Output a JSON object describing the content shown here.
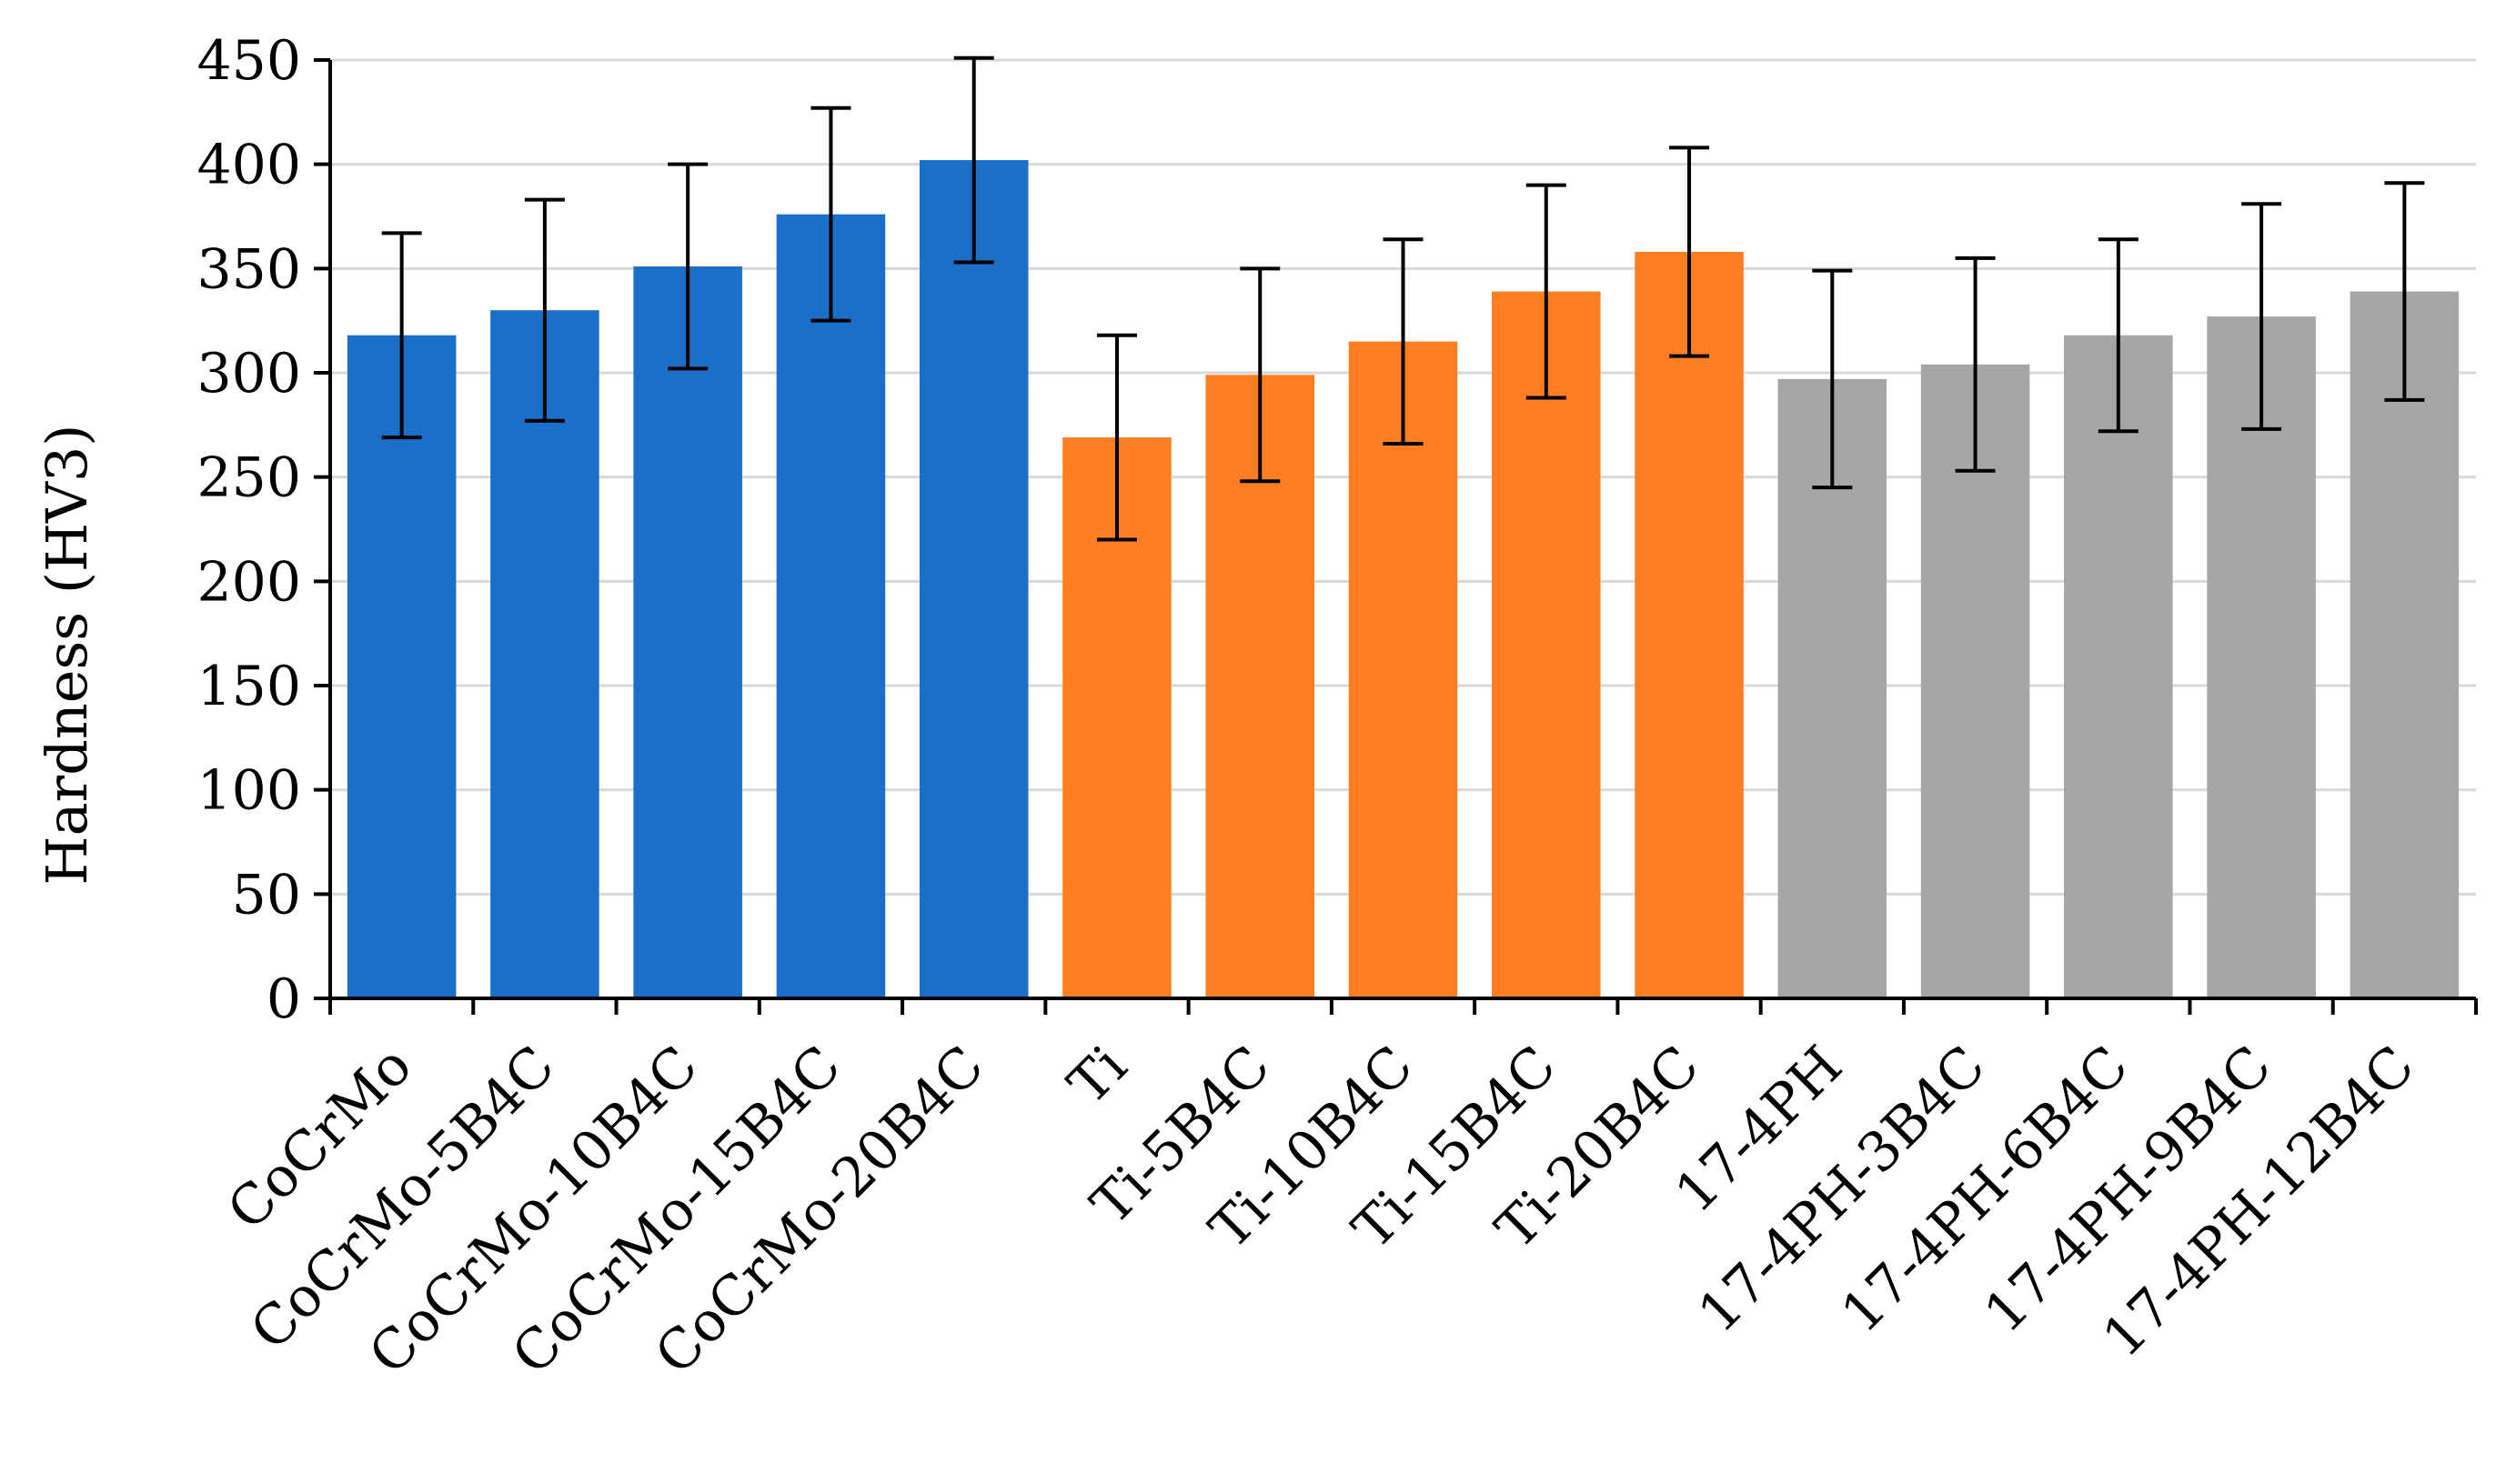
{
  "chart_data": {
    "type": "bar",
    "title": "",
    "xlabel": "",
    "ylabel": "Hardness (HV3)",
    "ylim": [
      0,
      450
    ],
    "ytick_step": 50,
    "yticks": [
      "0",
      "50",
      "100",
      "150",
      "200",
      "250",
      "300",
      "350",
      "400",
      "450"
    ],
    "grid": true,
    "categories": [
      "CoCrMo",
      "CoCrMo-5B4C",
      "CoCrMo-10B4C",
      "CoCrMo-15B4C",
      "CoCrMo-20B4C",
      "Ti",
      "Ti-5B4C",
      "Ti-10B4C",
      "Ti-15B4C",
      "Ti-20B4C",
      "17-4PH",
      "17-4PH-3B4C",
      "17-4PH-6B4C",
      "17-4PH-9B4C",
      "17-4PH-12B4C"
    ],
    "values": [
      318,
      330,
      351,
      376,
      402,
      269,
      299,
      315,
      339,
      358,
      297,
      304,
      318,
      327,
      339
    ],
    "errors": [
      49,
      53,
      49,
      51,
      49,
      49,
      51,
      49,
      51,
      50,
      52,
      51,
      46,
      54,
      52
    ],
    "group_colors": [
      "#1a6fc8",
      "#1a6fc8",
      "#1a6fc8",
      "#1a6fc8",
      "#1a6fc8",
      "#fd7f22",
      "#fd7f22",
      "#fd7f22",
      "#fd7f22",
      "#fd7f22",
      "#a6a6a6",
      "#a6a6a6",
      "#a6a6a6",
      "#a6a6a6",
      "#a6a6a6"
    ],
    "axis_color": "#000000",
    "grid_color": "#d9d9d9"
  }
}
